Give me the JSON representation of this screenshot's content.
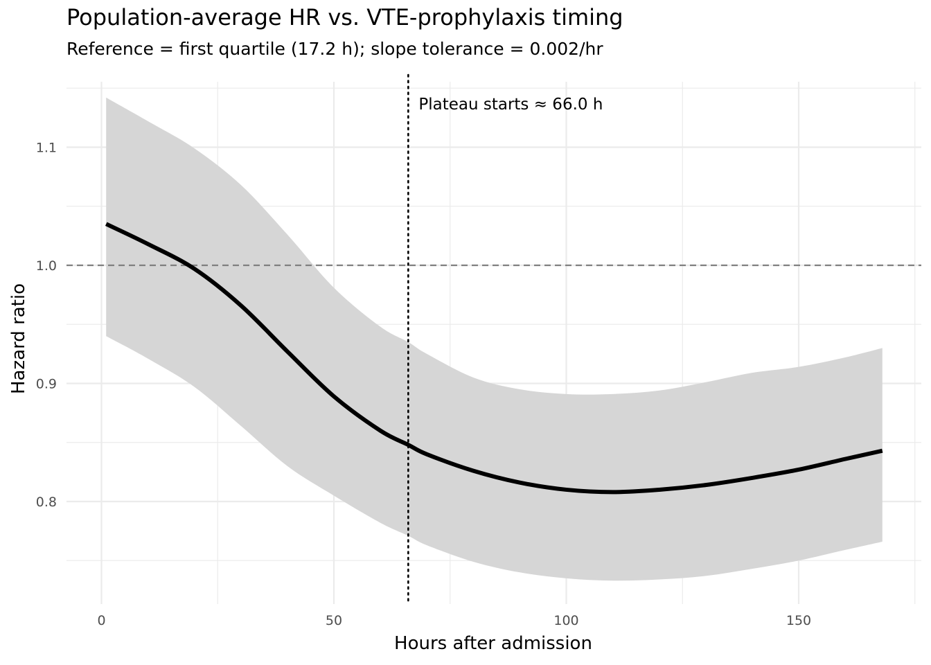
{
  "chart_data": {
    "type": "line",
    "title": "Population-average HR vs. VTE-prophylaxis timing",
    "subtitle": "Reference = first quartile (17.2 h); slope tolerance = 0.002/hr",
    "xlabel": "Hours after admission",
    "ylabel": "Hazard ratio",
    "xlim": [
      -7,
      176
    ],
    "ylim": [
      0.71,
      1.16
    ],
    "x_ticks": [
      0,
      50,
      100,
      150
    ],
    "x_tick_labels": [
      "0",
      "50",
      "100",
      "150"
    ],
    "y_ticks": [
      0.8,
      0.9,
      1.0,
      1.1
    ],
    "y_tick_labels": [
      "0.8",
      "0.9",
      "1.0",
      "1.1"
    ],
    "grid": true,
    "reference_line_y": 1.0,
    "plateau_x": 66.0,
    "annotation": "Plateau starts ≈ 66.0 h",
    "series": [
      {
        "x": [
          1,
          10,
          20,
          30,
          40,
          50,
          60,
          66,
          70,
          80,
          90,
          100,
          110,
          120,
          130,
          140,
          150,
          160,
          168
        ],
        "estimate": [
          1.035,
          1.018,
          0.997,
          0.966,
          0.927,
          0.889,
          0.86,
          0.848,
          0.84,
          0.826,
          0.816,
          0.81,
          0.808,
          0.81,
          0.814,
          0.82,
          0.827,
          0.836,
          0.843
        ],
        "lower": [
          0.94,
          0.921,
          0.897,
          0.864,
          0.83,
          0.805,
          0.782,
          0.771,
          0.763,
          0.749,
          0.74,
          0.735,
          0.733,
          0.734,
          0.737,
          0.743,
          0.75,
          0.759,
          0.766
        ],
        "upper": [
          1.142,
          1.122,
          1.099,
          1.068,
          1.026,
          0.981,
          0.948,
          0.935,
          0.925,
          0.905,
          0.895,
          0.891,
          0.891,
          0.894,
          0.901,
          0.909,
          0.914,
          0.922,
          0.93
        ]
      }
    ],
    "colors": {
      "line": "#000000",
      "ribbon": "#d6d6d6",
      "grid": "#ebebeb",
      "reference": "#7f7f7f"
    }
  }
}
